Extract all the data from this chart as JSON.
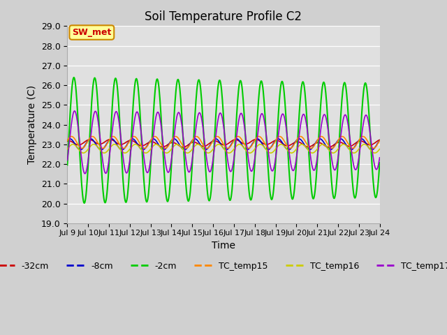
{
  "title": "Soil Temperature Profile C2",
  "xlabel": "Time",
  "ylabel": "Temperature (C)",
  "ylim": [
    19.0,
    29.0
  ],
  "yticks": [
    19.0,
    20.0,
    21.0,
    22.0,
    23.0,
    24.0,
    25.0,
    26.0,
    27.0,
    28.0,
    29.0
  ],
  "xtick_labels": [
    "Jul 9",
    "Jul 10",
    "Jul 11",
    "Jul 12",
    "Jul 13",
    "Jul 14",
    "Jul 15",
    "Jul 16",
    "Jul 17",
    "Jul 18",
    "Jul 19",
    "Jul 20",
    "Jul 21",
    "Jul 22",
    "Jul 23",
    "Jul 24"
  ],
  "colors": {
    "-32cm": "#cc0000",
    "-8cm": "#0000cc",
    "-2cm": "#00cc00",
    "TC_temp15": "#ff8800",
    "TC_temp16": "#cccc00",
    "TC_temp17": "#9900cc"
  },
  "annotation_text": "SW_met",
  "annotation_bg": "#ffff99",
  "annotation_border": "#cc8800",
  "annotation_text_color": "#cc0000",
  "fig_bg": "#d0d0d0",
  "plot_bg": "#e0e0e0"
}
